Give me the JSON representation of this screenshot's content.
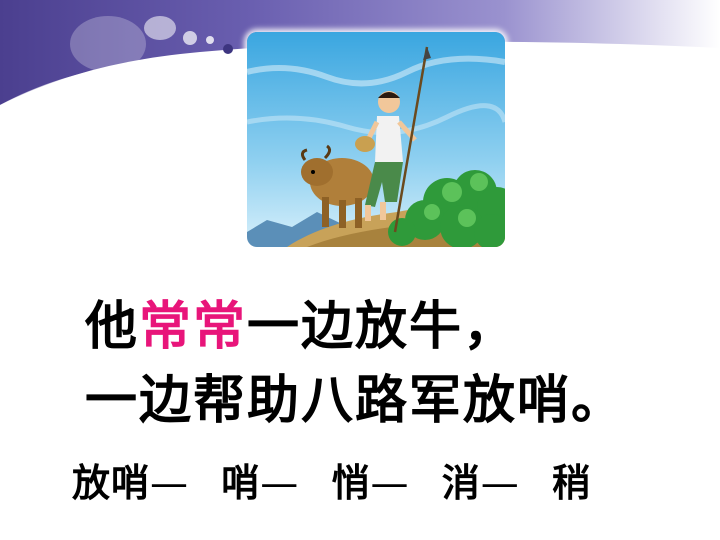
{
  "sentence": {
    "line1": {
      "before": "他",
      "highlight": "常常",
      "after": "一边放牛，"
    },
    "line2": "一边帮助八路军放哨。"
  },
  "words": [
    {
      "text": "放哨",
      "dash": "—"
    },
    {
      "text": "哨",
      "dash": "—"
    },
    {
      "text": "悄",
      "dash": "—"
    },
    {
      "text": "消",
      "dash": "—"
    },
    {
      "text": "稍",
      "dash": ""
    }
  ],
  "colors": {
    "highlight": "#e8157a",
    "banner": "#5a4e9e"
  },
  "illustration": {
    "icon": "boy-herding-ox-illustration"
  }
}
